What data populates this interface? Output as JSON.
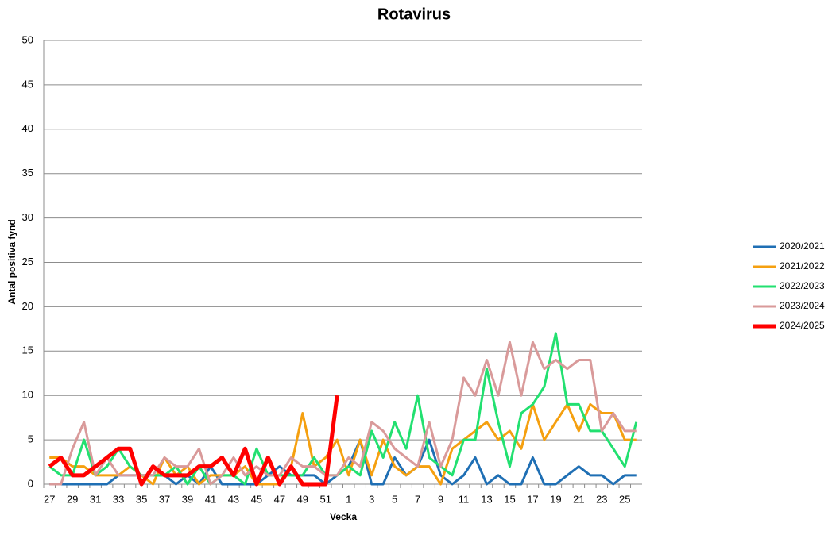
{
  "chart_data": {
    "type": "line",
    "title": "Rotavirus",
    "x_label": "Vecka",
    "y_label": "Antal positiva fynd",
    "categories": [
      "27",
      null,
      "29",
      null,
      "31",
      null,
      "33",
      null,
      "35",
      null,
      "37",
      null,
      "39",
      null,
      "41",
      null,
      "43",
      null,
      "45",
      null,
      "47",
      null,
      "49",
      null,
      "51",
      null,
      "1",
      null,
      "3",
      null,
      "5",
      null,
      "7",
      null,
      "9",
      null,
      "11",
      null,
      "13",
      null,
      "15",
      null,
      "17",
      null,
      "19",
      null,
      "21",
      null,
      "23",
      null,
      "25",
      null
    ],
    "ylim": [
      0,
      50
    ],
    "yticks": [
      0,
      5,
      10,
      15,
      20,
      25,
      30,
      35,
      40,
      45,
      50
    ],
    "grid": true,
    "legend": "right",
    "series": [
      {
        "name": "2020/2021",
        "color": "#1f6fb4",
        "values": [
          0,
          0,
          0,
          0,
          0,
          0,
          1,
          1,
          1,
          1,
          1,
          0,
          1,
          0,
          2,
          0,
          0,
          0,
          0,
          1,
          2,
          1,
          1,
          1,
          0,
          1,
          2,
          5,
          0,
          0,
          3,
          1,
          2,
          5,
          1,
          0,
          1,
          3,
          0,
          1,
          0,
          0,
          3,
          0,
          0,
          1,
          2,
          1,
          1,
          0,
          1,
          1
        ]
      },
      {
        "name": "2021/2022",
        "color": "#f5a010",
        "values": [
          3,
          3,
          2,
          2,
          1,
          1,
          1,
          2,
          1,
          0,
          3,
          1,
          2,
          0,
          1,
          1,
          1,
          2,
          0,
          0,
          0,
          2,
          8,
          2,
          3,
          5,
          1,
          5,
          1,
          5,
          2,
          1,
          2,
          2,
          0,
          4,
          5,
          6,
          7,
          5,
          6,
          4,
          9,
          5,
          7,
          9,
          6,
          9,
          8,
          8,
          5,
          5
        ]
      },
      {
        "name": "2022/2023",
        "color": "#22e070",
        "values": [
          2,
          1,
          1,
          5,
          1,
          2,
          4,
          2,
          1,
          1,
          1,
          2,
          0,
          2,
          0,
          1,
          1,
          0,
          4,
          1,
          1,
          1,
          1,
          3,
          1,
          1,
          2,
          1,
          6,
          3,
          7,
          4,
          10,
          3,
          2,
          1,
          5,
          5,
          13,
          7,
          2,
          8,
          9,
          11,
          17,
          9,
          9,
          6,
          6,
          4,
          2,
          7
        ]
      },
      {
        "name": "2023/2024",
        "color": "#d99a9a",
        "values": [
          0,
          0,
          4,
          7,
          1,
          3,
          1,
          1,
          1,
          1,
          3,
          2,
          2,
          4,
          0,
          1,
          3,
          1,
          2,
          1,
          1,
          3,
          2,
          2,
          1,
          1,
          3,
          2,
          7,
          6,
          4,
          3,
          2,
          7,
          2,
          5,
          12,
          10,
          14,
          10,
          16,
          10,
          16,
          13,
          14,
          13,
          14,
          14,
          6,
          8,
          6,
          6
        ]
      },
      {
        "name": "2024/2025",
        "color": "#ff0000",
        "values": [
          2,
          3,
          1,
          1,
          2,
          3,
          4,
          4,
          0,
          2,
          1,
          1,
          1,
          2,
          2,
          3,
          1,
          4,
          0,
          3,
          0,
          2,
          0,
          0,
          0,
          10,
          null,
          null,
          null,
          null,
          null,
          null,
          null,
          null,
          null,
          null,
          null,
          null,
          null,
          null,
          null,
          null,
          null,
          null,
          null,
          null,
          null,
          null,
          null,
          null,
          null,
          null
        ]
      }
    ]
  }
}
